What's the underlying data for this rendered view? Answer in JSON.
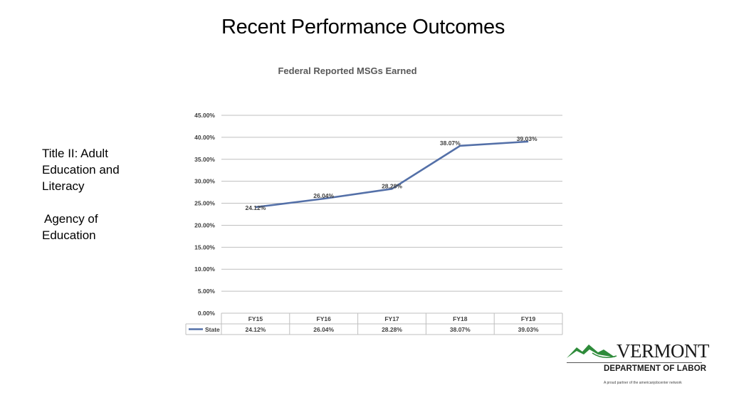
{
  "slide": {
    "title": "Recent Performance Outcomes",
    "side_text": {
      "line1": "Title II: Adult",
      "line2": "Education and",
      "line3": "Literacy",
      "line4": "Agency of",
      "line5": "Education"
    }
  },
  "logo": {
    "wordmark": "VERMONT",
    "department": "DEPARTMENT OF LABOR",
    "partner_line": "A proud partner of the americanjobcenter network",
    "colors": {
      "mountain": "#2e8b3a",
      "text": "#1a1a1a"
    }
  },
  "chart_data": {
    "type": "line",
    "title": "Federal Reported MSGs Earned",
    "categories": [
      "FY15",
      "FY16",
      "FY17",
      "FY18",
      "FY19"
    ],
    "series": [
      {
        "name": "State",
        "values": [
          24.12,
          26.04,
          28.28,
          38.07,
          39.03
        ],
        "labels": [
          "24.12%",
          "26.04%",
          "28.28%",
          "38.07%",
          "39.03%"
        ],
        "color": "#5470a8"
      }
    ],
    "yticks": [
      "0.00%",
      "5.00%",
      "10.00%",
      "15.00%",
      "20.00%",
      "25.00%",
      "30.00%",
      "35.00%",
      "40.00%",
      "45.00%"
    ],
    "ylim": [
      0,
      45
    ],
    "grid": true,
    "legend": "data-table",
    "xlabel": "",
    "ylabel": ""
  }
}
